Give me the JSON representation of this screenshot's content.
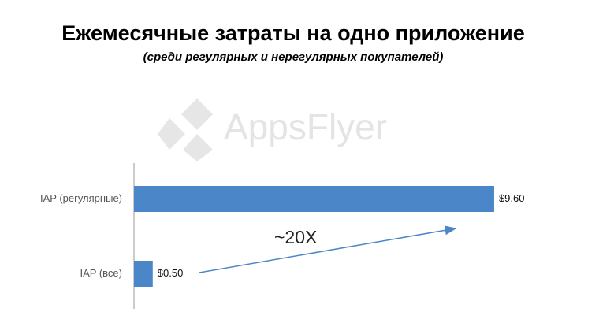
{
  "chart_data": {
    "type": "barh",
    "title": "Ежемесячные затраты на одно приложение",
    "subtitle": "(среди регулярных и нерегулярных покупателей)",
    "watermark": "AppsFlyer",
    "annotation": "~20X",
    "categories": [
      "IAP (регулярные)",
      "IAP (все)"
    ],
    "values": [
      9.6,
      0.5
    ],
    "value_labels": [
      "$9.60",
      "$0.50"
    ],
    "color": "#4a86c8",
    "xlim": [
      0,
      10
    ]
  }
}
